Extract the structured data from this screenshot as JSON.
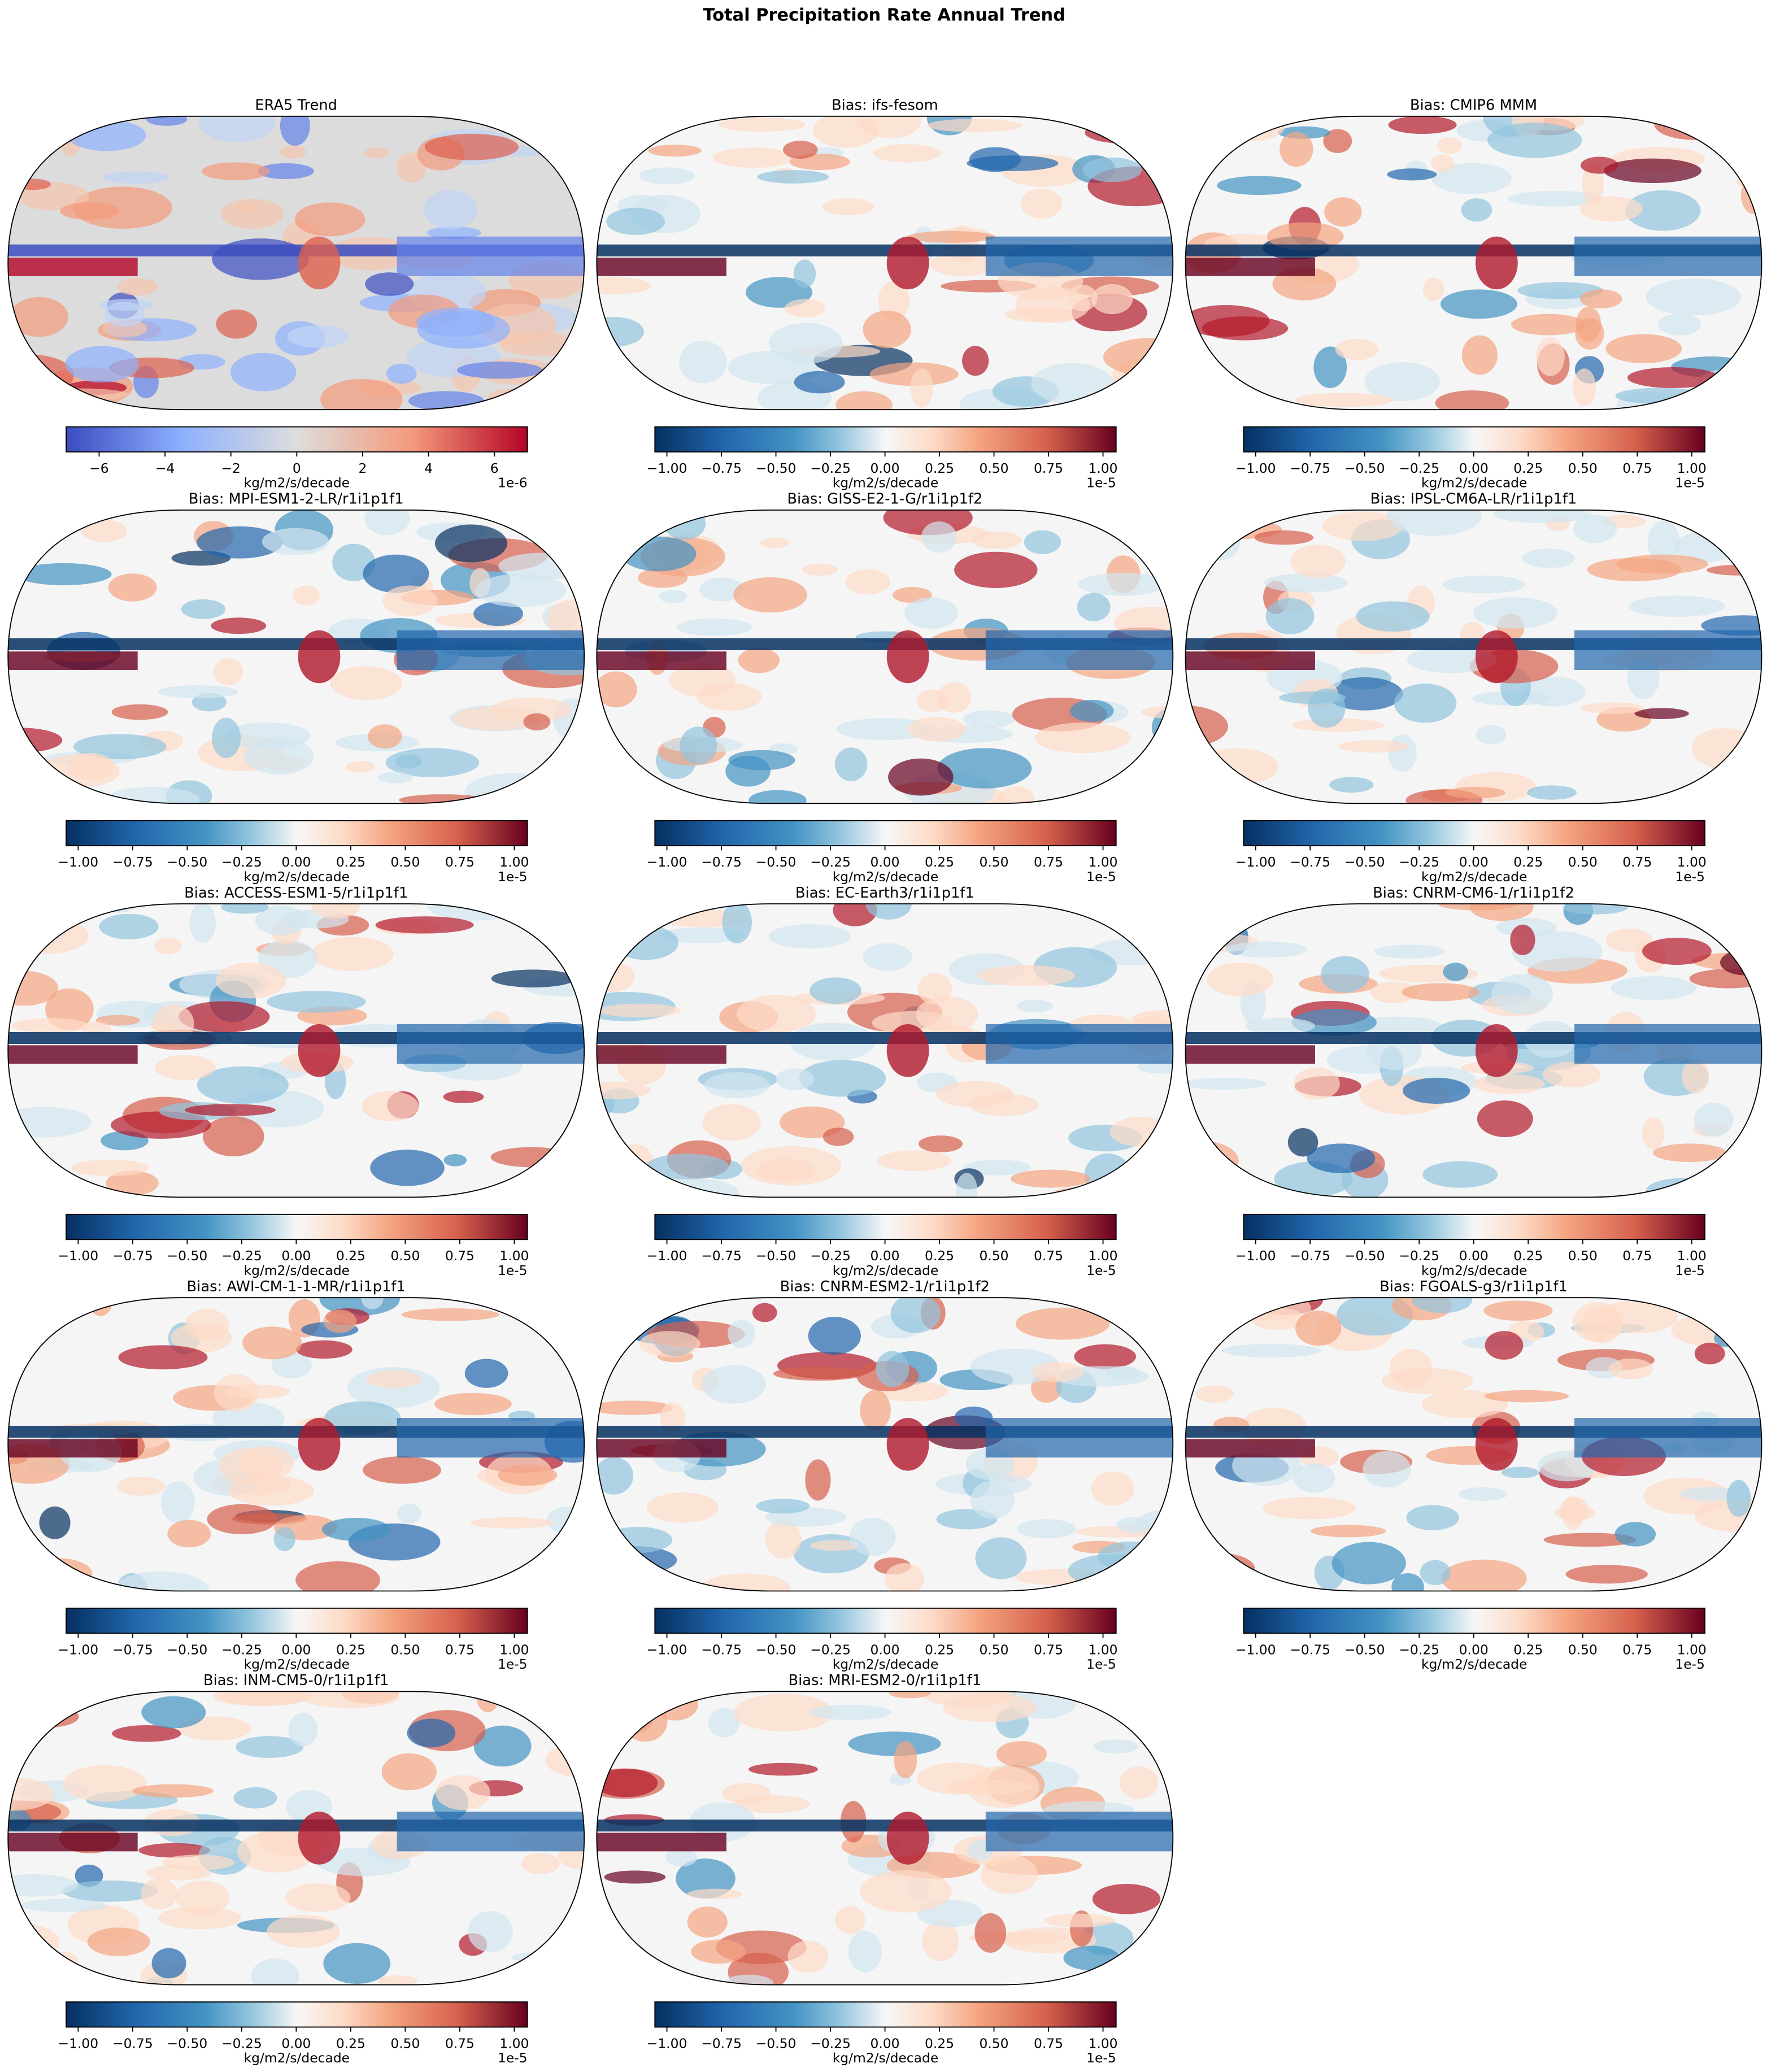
{
  "title": "Total Precipitation Rate Annual Trend",
  "panels": [
    {
      "title": "ERA5 Trend",
      "colormap": "coolwarm",
      "colorbar": {
        "label": "kg/m2/s/decade",
        "offset": "1e-6",
        "lim": [
          -7,
          7
        ],
        "ticks": [
          {
            "value": -6,
            "label": "−6"
          },
          {
            "value": -4,
            "label": "−4"
          },
          {
            "value": -2,
            "label": "−2"
          },
          0,
          2,
          4,
          6
        ]
      }
    },
    {
      "title": "Bias: ifs-fesom",
      "colormap": "RdBu_r",
      "colorbar": {
        "label": "kg/m2/s/decade",
        "offset": "1e-5",
        "lim": [
          -1.055,
          1.06
        ],
        "ticks": [
          {
            "value": -1,
            "label": "−1.00"
          },
          {
            "value": -0.75,
            "label": "−0.75"
          },
          {
            "value": -0.5,
            "label": "−0.50"
          },
          {
            "value": -0.25,
            "label": "−0.25"
          },
          {
            "value": 0,
            "label": "0.00"
          },
          {
            "value": 0.25,
            "label": "0.25"
          },
          {
            "value": 0.5,
            "label": "0.50"
          },
          {
            "value": 0.75,
            "label": "0.75"
          },
          {
            "value": 1,
            "label": "1.00"
          }
        ]
      }
    },
    {
      "title": "Bias: CMIP6 MMM",
      "colormap": "RdBu_r",
      "colorbar": {
        "label": "kg/m2/s/decade",
        "offset": "1e-5",
        "lim": [
          -1.055,
          1.06
        ],
        "ticks": [
          {
            "value": -1,
            "label": "−1.00"
          },
          {
            "value": -0.75,
            "label": "−0.75"
          },
          {
            "value": -0.5,
            "label": "−0.50"
          },
          {
            "value": -0.25,
            "label": "−0.25"
          },
          {
            "value": 0,
            "label": "0.00"
          },
          {
            "value": 0.25,
            "label": "0.25"
          },
          {
            "value": 0.5,
            "label": "0.50"
          },
          {
            "value": 0.75,
            "label": "0.75"
          },
          {
            "value": 1,
            "label": "1.00"
          }
        ]
      }
    },
    {
      "title": "Bias: MPI-ESM1-2-LR/r1i1p1f1",
      "colormap": "RdBu_r",
      "colorbar": {
        "label": "kg/m2/s/decade",
        "offset": "1e-5",
        "lim": [
          -1.055,
          1.06
        ],
        "ticks": [
          {
            "value": -1,
            "label": "−1.00"
          },
          {
            "value": -0.75,
            "label": "−0.75"
          },
          {
            "value": -0.5,
            "label": "−0.50"
          },
          {
            "value": -0.25,
            "label": "−0.25"
          },
          {
            "value": 0,
            "label": "0.00"
          },
          {
            "value": 0.25,
            "label": "0.25"
          },
          {
            "value": 0.5,
            "label": "0.50"
          },
          {
            "value": 0.75,
            "label": "0.75"
          },
          {
            "value": 1,
            "label": "1.00"
          }
        ]
      }
    },
    {
      "title": "Bias: GISS-E2-1-G/r1i1p1f2",
      "colormap": "RdBu_r",
      "colorbar": {
        "label": "kg/m2/s/decade",
        "offset": "1e-5",
        "lim": [
          -1.055,
          1.06
        ],
        "ticks": [
          {
            "value": -1,
            "label": "−1.00"
          },
          {
            "value": -0.75,
            "label": "−0.75"
          },
          {
            "value": -0.5,
            "label": "−0.50"
          },
          {
            "value": -0.25,
            "label": "−0.25"
          },
          {
            "value": 0,
            "label": "0.00"
          },
          {
            "value": 0.25,
            "label": "0.25"
          },
          {
            "value": 0.5,
            "label": "0.50"
          },
          {
            "value": 0.75,
            "label": "0.75"
          },
          {
            "value": 1,
            "label": "1.00"
          }
        ]
      }
    },
    {
      "title": "Bias: IPSL-CM6A-LR/r1i1p1f1",
      "colormap": "RdBu_r",
      "colorbar": {
        "label": "kg/m2/s/decade",
        "offset": "1e-5",
        "lim": [
          -1.055,
          1.06
        ],
        "ticks": [
          {
            "value": -1,
            "label": "−1.00"
          },
          {
            "value": -0.75,
            "label": "−0.75"
          },
          {
            "value": -0.5,
            "label": "−0.50"
          },
          {
            "value": -0.25,
            "label": "−0.25"
          },
          {
            "value": 0,
            "label": "0.00"
          },
          {
            "value": 0.25,
            "label": "0.25"
          },
          {
            "value": 0.5,
            "label": "0.50"
          },
          {
            "value": 0.75,
            "label": "0.75"
          },
          {
            "value": 1,
            "label": "1.00"
          }
        ]
      }
    },
    {
      "title": "Bias: ACCESS-ESM1-5/r1i1p1f1",
      "colormap": "RdBu_r",
      "colorbar": {
        "label": "kg/m2/s/decade",
        "offset": "1e-5",
        "lim": [
          -1.055,
          1.06
        ],
        "ticks": [
          {
            "value": -1,
            "label": "−1.00"
          },
          {
            "value": -0.75,
            "label": "−0.75"
          },
          {
            "value": -0.5,
            "label": "−0.50"
          },
          {
            "value": -0.25,
            "label": "−0.25"
          },
          {
            "value": 0,
            "label": "0.00"
          },
          {
            "value": 0.25,
            "label": "0.25"
          },
          {
            "value": 0.5,
            "label": "0.50"
          },
          {
            "value": 0.75,
            "label": "0.75"
          },
          {
            "value": 1,
            "label": "1.00"
          }
        ]
      }
    },
    {
      "title": "Bias: EC-Earth3/r1i1p1f1",
      "colormap": "RdBu_r",
      "colorbar": {
        "label": "kg/m2/s/decade",
        "offset": "1e-5",
        "lim": [
          -1.055,
          1.06
        ],
        "ticks": [
          {
            "value": -1,
            "label": "−1.00"
          },
          {
            "value": -0.75,
            "label": "−0.75"
          },
          {
            "value": -0.5,
            "label": "−0.50"
          },
          {
            "value": -0.25,
            "label": "−0.25"
          },
          {
            "value": 0,
            "label": "0.00"
          },
          {
            "value": 0.25,
            "label": "0.25"
          },
          {
            "value": 0.5,
            "label": "0.50"
          },
          {
            "value": 0.75,
            "label": "0.75"
          },
          {
            "value": 1,
            "label": "1.00"
          }
        ]
      }
    },
    {
      "title": "Bias: CNRM-CM6-1/r1i1p1f2",
      "colormap": "RdBu_r",
      "colorbar": {
        "label": "kg/m2/s/decade",
        "offset": "1e-5",
        "lim": [
          -1.055,
          1.06
        ],
        "ticks": [
          {
            "value": -1,
            "label": "−1.00"
          },
          {
            "value": -0.75,
            "label": "−0.75"
          },
          {
            "value": -0.5,
            "label": "−0.50"
          },
          {
            "value": -0.25,
            "label": "−0.25"
          },
          {
            "value": 0,
            "label": "0.00"
          },
          {
            "value": 0.25,
            "label": "0.25"
          },
          {
            "value": 0.5,
            "label": "0.50"
          },
          {
            "value": 0.75,
            "label": "0.75"
          },
          {
            "value": 1,
            "label": "1.00"
          }
        ]
      }
    },
    {
      "title": "Bias: AWI-CM-1-1-MR/r1i1p1f1",
      "colormap": "RdBu_r",
      "colorbar": {
        "label": "kg/m2/s/decade",
        "offset": "1e-5",
        "lim": [
          -1.055,
          1.06
        ],
        "ticks": [
          {
            "value": -1,
            "label": "−1.00"
          },
          {
            "value": -0.75,
            "label": "−0.75"
          },
          {
            "value": -0.5,
            "label": "−0.50"
          },
          {
            "value": -0.25,
            "label": "−0.25"
          },
          {
            "value": 0,
            "label": "0.00"
          },
          {
            "value": 0.25,
            "label": "0.25"
          },
          {
            "value": 0.5,
            "label": "0.50"
          },
          {
            "value": 0.75,
            "label": "0.75"
          },
          {
            "value": 1,
            "label": "1.00"
          }
        ]
      }
    },
    {
      "title": "Bias: CNRM-ESM2-1/r1i1p1f2",
      "colormap": "RdBu_r",
      "colorbar": {
        "label": "kg/m2/s/decade",
        "offset": "1e-5",
        "lim": [
          -1.055,
          1.06
        ],
        "ticks": [
          {
            "value": -1,
            "label": "−1.00"
          },
          {
            "value": -0.75,
            "label": "−0.75"
          },
          {
            "value": -0.5,
            "label": "−0.50"
          },
          {
            "value": -0.25,
            "label": "−0.25"
          },
          {
            "value": 0,
            "label": "0.00"
          },
          {
            "value": 0.25,
            "label": "0.25"
          },
          {
            "value": 0.5,
            "label": "0.50"
          },
          {
            "value": 0.75,
            "label": "0.75"
          },
          {
            "value": 1,
            "label": "1.00"
          }
        ]
      }
    },
    {
      "title": "Bias: FGOALS-g3/r1i1p1f1",
      "colormap": "RdBu_r",
      "colorbar": {
        "label": "kg/m2/s/decade",
        "offset": "1e-5",
        "lim": [
          -1.055,
          1.06
        ],
        "ticks": [
          {
            "value": -1,
            "label": "−1.00"
          },
          {
            "value": -0.75,
            "label": "−0.75"
          },
          {
            "value": -0.5,
            "label": "−0.50"
          },
          {
            "value": -0.25,
            "label": "−0.25"
          },
          {
            "value": 0,
            "label": "0.00"
          },
          {
            "value": 0.25,
            "label": "0.25"
          },
          {
            "value": 0.5,
            "label": "0.50"
          },
          {
            "value": 0.75,
            "label": "0.75"
          },
          {
            "value": 1,
            "label": "1.00"
          }
        ]
      }
    },
    {
      "title": "Bias: INM-CM5-0/r1i1p1f1",
      "colormap": "RdBu_r",
      "colorbar": {
        "label": "kg/m2/s/decade",
        "offset": "1e-5",
        "lim": [
          -1.055,
          1.06
        ],
        "ticks": [
          {
            "value": -1,
            "label": "−1.00"
          },
          {
            "value": -0.75,
            "label": "−0.75"
          },
          {
            "value": -0.5,
            "label": "−0.50"
          },
          {
            "value": -0.25,
            "label": "−0.25"
          },
          {
            "value": 0,
            "label": "0.00"
          },
          {
            "value": 0.25,
            "label": "0.25"
          },
          {
            "value": 0.5,
            "label": "0.50"
          },
          {
            "value": 0.75,
            "label": "0.75"
          },
          {
            "value": 1,
            "label": "1.00"
          }
        ]
      }
    },
    {
      "title": "Bias: MRI-ESM2-0/r1i1p1f1",
      "colormap": "RdBu_r",
      "colorbar": {
        "label": "kg/m2/s/decade",
        "offset": "1e-5",
        "lim": [
          -1.055,
          1.06
        ],
        "ticks": [
          {
            "value": -1,
            "label": "−1.00"
          },
          {
            "value": -0.75,
            "label": "−0.75"
          },
          {
            "value": -0.5,
            "label": "−0.50"
          },
          {
            "value": -0.25,
            "label": "−0.25"
          },
          {
            "value": 0,
            "label": "0.00"
          },
          {
            "value": 0.25,
            "label": "0.25"
          },
          {
            "value": 0.5,
            "label": "0.50"
          },
          {
            "value": 0.75,
            "label": "0.75"
          },
          {
            "value": 1,
            "label": "1.00"
          }
        ]
      }
    }
  ]
}
